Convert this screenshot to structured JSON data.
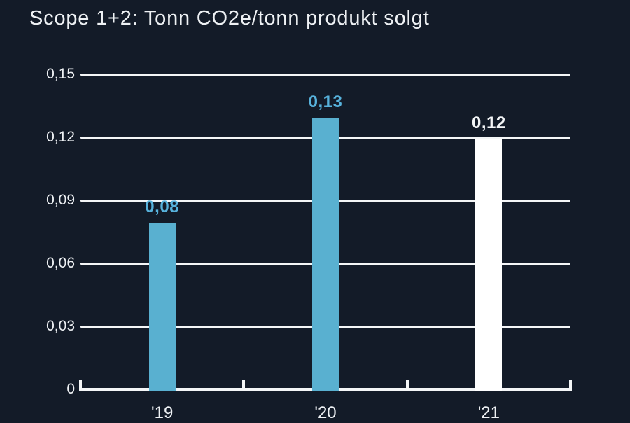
{
  "page": {
    "background_color": "#131b28",
    "text_color": "#eef1f4"
  },
  "header": {
    "title": "Scope 1+2: Tonn CO2e/tonn produkt solgt"
  },
  "chart_data": {
    "type": "bar",
    "title": "Scope 1+2: Tonn CO2e/tonn produkt solgt",
    "categories": [
      "'19",
      "'20",
      "'21"
    ],
    "values": [
      0.08,
      0.13,
      0.12
    ],
    "value_labels": [
      "0,08",
      "0,13",
      "0,12"
    ],
    "bar_colors": [
      "#59b0d0",
      "#59b0d0",
      "#ffffff"
    ],
    "value_label_colors": [
      "#57b2dc",
      "#57b2dc",
      "#f3f5f7"
    ],
    "xlabel": "",
    "ylabel": "",
    "ylim": [
      0,
      0.15
    ],
    "ytick_values": [
      0,
      0.03,
      0.06,
      0.09,
      0.12,
      0.15
    ],
    "ytick_labels": [
      "0",
      "0,03",
      "0,06",
      "0,09",
      "0,12",
      "0,15"
    ],
    "grid": true,
    "gridline_color": "#f4f6f7",
    "axis_color": "#f4f6f7",
    "legend_position": "none"
  }
}
